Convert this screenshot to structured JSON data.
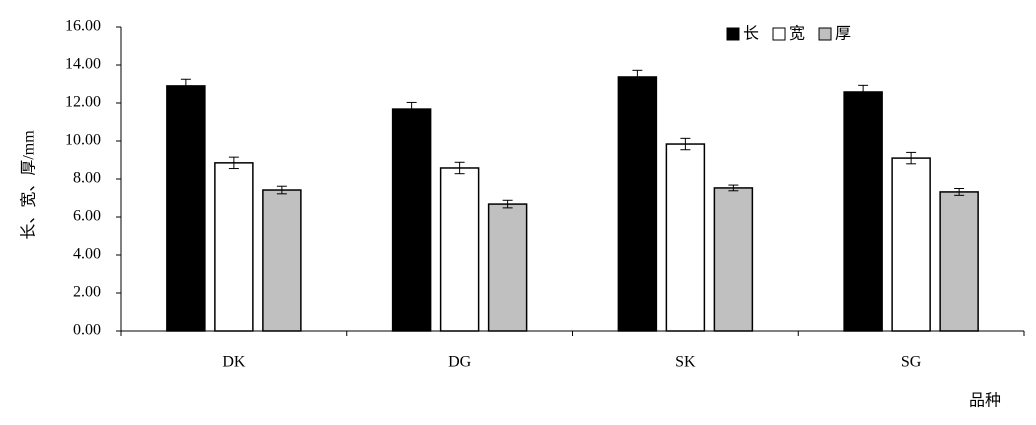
{
  "chart_data": {
    "type": "bar",
    "categories": [
      "DK",
      "DG",
      "SK",
      "SG"
    ],
    "series": [
      {
        "name": "长",
        "color": "#000000",
        "values": [
          12.9,
          11.68,
          13.37,
          12.58
        ],
        "errors": [
          0.35,
          0.35,
          0.35,
          0.35
        ]
      },
      {
        "name": "宽",
        "color": "#ffffff",
        "values": [
          8.85,
          8.58,
          9.84,
          9.1
        ],
        "errors": [
          0.3,
          0.3,
          0.3,
          0.3
        ]
      },
      {
        "name": "厚",
        "color": "#c0c0c0",
        "values": [
          7.42,
          6.68,
          7.53,
          7.32
        ],
        "errors": [
          0.2,
          0.2,
          0.15,
          0.18
        ]
      }
    ],
    "y_label": "长、宽、厚/mm",
    "x_label": "品种",
    "ylim": [
      0,
      16
    ],
    "yticks": [
      {
        "value": 0,
        "label": "0.00"
      },
      {
        "value": 2,
        "label": "2.00"
      },
      {
        "value": 4,
        "label": "4.00"
      },
      {
        "value": 6,
        "label": "6.00"
      },
      {
        "value": 8,
        "label": "8.00"
      },
      {
        "value": 10,
        "label": "10.00"
      },
      {
        "value": 12,
        "label": "12.00"
      },
      {
        "value": 14,
        "label": "14.00"
      },
      {
        "value": 16,
        "label": "16.00"
      }
    ],
    "legend": "top-right"
  }
}
